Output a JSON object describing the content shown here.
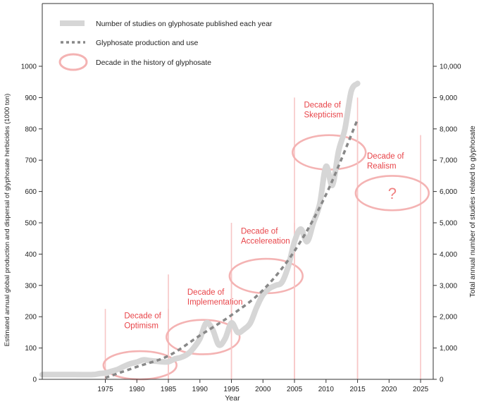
{
  "chart_data": {
    "type": "line",
    "xlabel": "Year",
    "ylabel_left": "Estimated annual global production and dispersal of glyphosate herbicides  (1000 ton)",
    "ylabel_right": "Total annual number of studies related to glyphosate",
    "xlim": [
      1965,
      2027
    ],
    "ylim_left": [
      0,
      1000
    ],
    "ylim_right": [
      0,
      10000
    ],
    "x_ticks": [
      1975,
      1980,
      1985,
      1990,
      1995,
      2000,
      2005,
      2010,
      2015,
      2020,
      2025
    ],
    "y_left_ticks": [
      0,
      100,
      200,
      300,
      400,
      500,
      600,
      700,
      800,
      900,
      1000
    ],
    "y_right_ticks": [
      "0",
      "1,000",
      "2,000",
      "3,000",
      "4,000",
      "5,000",
      "6,000",
      "7,000",
      "8,000",
      "9,000",
      "10,000"
    ],
    "grid": false,
    "legend_position": "top-left",
    "legend": [
      {
        "label": "Number of studies on glyphosate published each year",
        "style": "thick-grey-line",
        "color": "#d6d6d6"
      },
      {
        "label": "Glyphosate production and use",
        "style": "dashed-line",
        "color": "#888888"
      },
      {
        "label": "Decade in the history of glyphosate",
        "style": "ellipse",
        "color": "#f4b3b3"
      }
    ],
    "series": [
      {
        "name": "Number of studies on glyphosate published each year",
        "axis": "right",
        "x": [
          1965,
          1970,
          1973,
          1974,
          1975,
          1976,
          1977,
          1978,
          1979,
          1980,
          1981,
          1982,
          1983,
          1984,
          1985,
          1986,
          1987,
          1988,
          1989,
          1990,
          1991,
          1992,
          1993,
          1994,
          1995,
          1996,
          1997,
          1998,
          1999,
          2000,
          2001,
          2002,
          2003,
          2004,
          2005,
          2006,
          2007,
          2008,
          2009,
          2010,
          2011,
          2012,
          2013,
          2014,
          2015
        ],
        "y": [
          150,
          150,
          150,
          180,
          200,
          260,
          320,
          420,
          500,
          550,
          620,
          600,
          580,
          560,
          560,
          650,
          700,
          800,
          1000,
          1300,
          1800,
          1600,
          1100,
          1300,
          1800,
          1500,
          1600,
          1800,
          2300,
          2700,
          2900,
          3000,
          3100,
          3600,
          4400,
          4800,
          4400,
          5000,
          5600,
          6800,
          6200,
          7300,
          8000,
          9200,
          9450
        ]
      },
      {
        "name": "Glyphosate production and use",
        "axis": "left",
        "x": [
          1975,
          1980,
          1985,
          1990,
          1995,
          2000,
          2005,
          2010,
          2015
        ],
        "y": [
          5,
          40,
          75,
          140,
          205,
          285,
          410,
          590,
          830
        ]
      }
    ],
    "decades": [
      {
        "label_lines": [
          "Decade of",
          "Optimism"
        ],
        "start": 1975,
        "end": 1985,
        "center_year": 1980.5,
        "center_y": 45,
        "rx_years": 5.8,
        "ry_units": 45,
        "line_top": 225,
        "label_x": 1978,
        "label_y": 195
      },
      {
        "label_lines": [
          "Decade of",
          "Implementation"
        ],
        "start": 1985,
        "end": 1995,
        "center_year": 1990.5,
        "center_y": 135,
        "rx_years": 5.8,
        "ry_units": 55,
        "line_top": 335,
        "label_x": 1988,
        "label_y": 270
      },
      {
        "label_lines": [
          "Decade of",
          "Accelereation"
        ],
        "start": 1995,
        "end": 2005,
        "center_year": 2000.5,
        "center_y": 330,
        "rx_years": 5.8,
        "ry_units": 55,
        "line_top": 500,
        "label_x": 1996.5,
        "label_y": 465
      },
      {
        "label_lines": [
          "Decade of",
          "Skepticism"
        ],
        "start": 2005,
        "end": 2015,
        "center_year": 2010.5,
        "center_y": 725,
        "rx_years": 5.8,
        "ry_units": 55,
        "line_top": 900,
        "label_x": 2006.5,
        "label_y": 868
      },
      {
        "label_lines": [
          "Decade of",
          "Realism"
        ],
        "start": 2015,
        "end": 2025,
        "center_year": 2020.5,
        "center_y": 595,
        "rx_years": 5.8,
        "ry_units": 55,
        "line_top": 780,
        "label_x": 2016.5,
        "label_y": 705,
        "marker": "?"
      }
    ]
  }
}
